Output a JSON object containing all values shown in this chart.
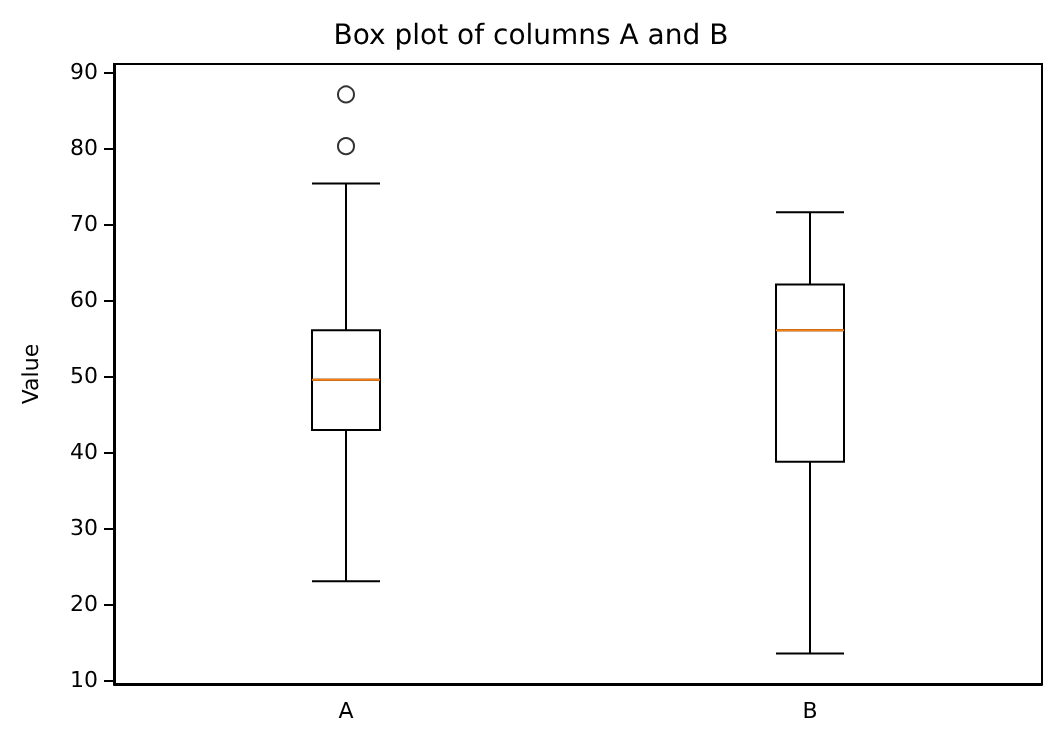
{
  "chart_data": {
    "type": "box",
    "title": "Box plot of columns A and B",
    "ylabel": "Value",
    "categories": [
      "A",
      "B"
    ],
    "boxes": [
      {
        "low": 23,
        "q1": 42.9,
        "median": 49.5,
        "q3": 56,
        "high": 75.3,
        "outliers": [
          80.2,
          87
        ]
      },
      {
        "low": 13.5,
        "q1": 38.7,
        "median": 56,
        "q3": 62,
        "high": 71.5
      }
    ],
    "color": "#000000",
    "ylim": [
      9.5,
      91
    ],
    "yticks": [
      10,
      20,
      30,
      40,
      50,
      60,
      70,
      80,
      90
    ],
    "grid": false,
    "marker": "circle"
  }
}
